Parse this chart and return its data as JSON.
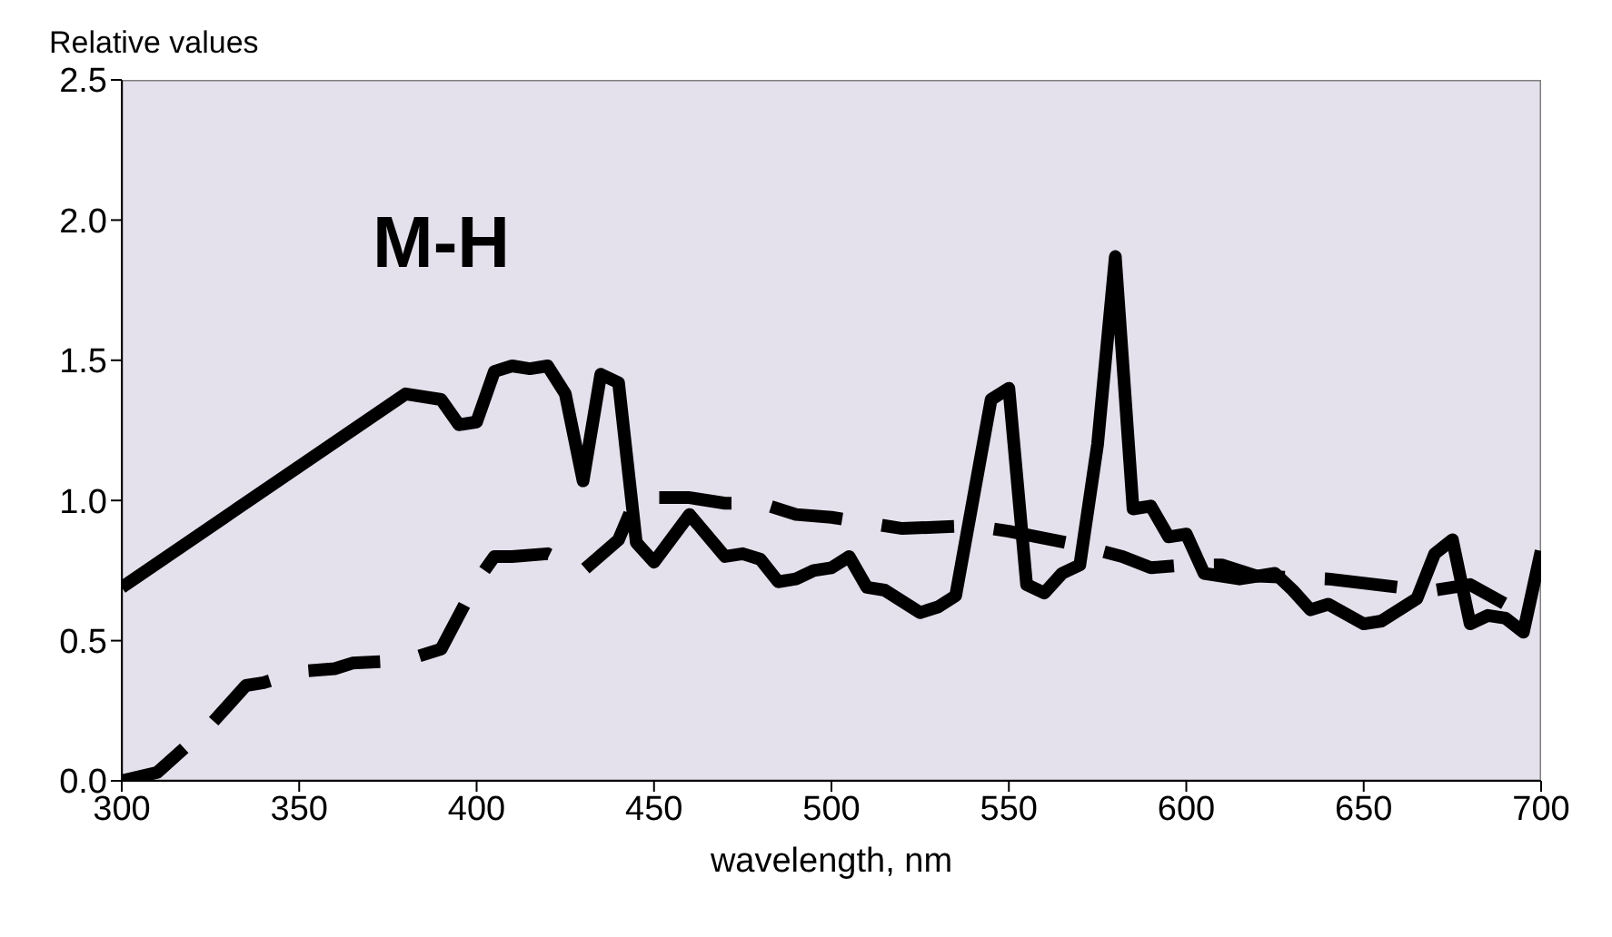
{
  "chart_data": {
    "type": "line",
    "xlabel": "wavelength, nm",
    "ylabel": "Relative values",
    "annotations": [
      "M-H"
    ],
    "xlim": [
      300,
      700
    ],
    "xticks": [
      300,
      350,
      400,
      450,
      500,
      550,
      600,
      650,
      700
    ],
    "ylim": [
      0,
      2.5
    ],
    "yticks": [
      {
        "value": 0,
        "label": "0.0"
      },
      {
        "value": 0.5,
        "label": "0.5"
      },
      {
        "value": 1,
        "label": "1.0"
      },
      {
        "value": 1.5,
        "label": "1.5"
      },
      {
        "value": 2,
        "label": "2.0"
      },
      {
        "value": 2.5,
        "label": "2.5"
      }
    ],
    "grid": false,
    "legend": false,
    "marker": "none",
    "series": [
      {
        "color": "#000000",
        "line_style": "solid",
        "x": [
          300,
          380,
          390,
          395,
          400,
          405,
          410,
          415,
          420,
          425,
          430,
          435,
          440,
          445,
          450,
          460,
          470,
          475,
          480,
          485,
          490,
          495,
          500,
          505,
          510,
          515,
          525,
          530,
          535,
          545,
          550,
          555,
          560,
          565,
          570,
          575,
          580,
          585,
          590,
          595,
          600,
          605,
          615,
          625,
          630,
          635,
          640,
          650,
          655,
          665,
          670,
          675,
          680,
          685,
          690,
          695,
          700
        ],
        "values": [
          0.69,
          1.38,
          1.36,
          1.27,
          1.28,
          1.46,
          1.48,
          1.47,
          1.48,
          1.38,
          1.07,
          1.45,
          1.42,
          0.85,
          0.78,
          0.95,
          0.8,
          0.81,
          0.79,
          0.71,
          0.72,
          0.75,
          0.76,
          0.8,
          0.69,
          0.68,
          0.6,
          0.62,
          0.66,
          1.36,
          1.4,
          0.7,
          0.67,
          0.74,
          0.77,
          1.2,
          1.87,
          0.97,
          0.98,
          0.87,
          0.88,
          0.74,
          0.72,
          0.74,
          0.68,
          0.61,
          0.63,
          0.56,
          0.57,
          0.65,
          0.81,
          0.86,
          0.56,
          0.59,
          0.58,
          0.53,
          0.82
        ]
      },
      {
        "color": "#000000",
        "line_style": "dashed",
        "x": [
          300,
          310,
          325,
          335,
          340,
          350,
          360,
          365,
          380,
          390,
          400,
          405,
          410,
          420,
          430,
          440,
          445,
          450,
          460,
          470,
          480,
          490,
          500,
          510,
          520,
          540,
          550,
          570,
          582,
          590,
          600,
          610,
          620,
          640,
          660,
          670,
          680,
          690,
          700
        ],
        "values": [
          0,
          0.03,
          0.2,
          0.34,
          0.35,
          0.39,
          0.4,
          0.42,
          0.43,
          0.47,
          0.71,
          0.8,
          0.8,
          0.81,
          0.75,
          0.86,
          1.01,
          1.01,
          1.01,
          0.99,
          0.99,
          0.95,
          0.94,
          0.92,
          0.9,
          0.91,
          0.89,
          0.84,
          0.8,
          0.76,
          0.77,
          0.77,
          0.73,
          0.72,
          0.69,
          0.68,
          0.7,
          0.63,
          0.62
        ]
      }
    ]
  }
}
